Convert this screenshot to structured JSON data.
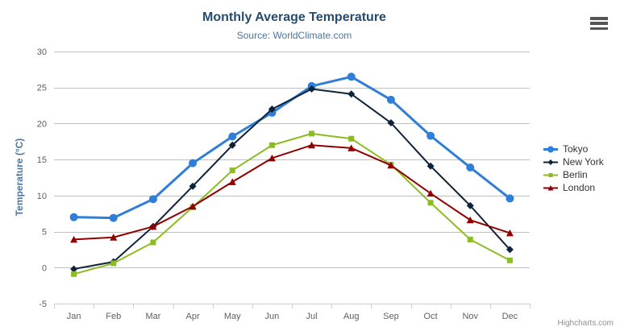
{
  "icons": {
    "context_menu": "hamburger-icon"
  },
  "chart_data": {
    "type": "line",
    "title": "Monthly Average Temperature",
    "subtitle": "Source: WorldClimate.com",
    "xlabel": "",
    "ylabel": "Temperature (°C)",
    "categories": [
      "Jan",
      "Feb",
      "Mar",
      "Apr",
      "May",
      "Jun",
      "Jul",
      "Aug",
      "Sep",
      "Oct",
      "Nov",
      "Dec"
    ],
    "ylim": [
      -5,
      30
    ],
    "ytick_step": 5,
    "grid": true,
    "legend_position": "right",
    "series": [
      {
        "name": "Tokyo",
        "color": "#2f7ed8",
        "marker": "circle",
        "line_width": 3,
        "marker_radius": 5,
        "values": [
          7.0,
          6.9,
          9.5,
          14.5,
          18.2,
          21.5,
          25.2,
          26.5,
          23.3,
          18.3,
          13.9,
          9.6
        ]
      },
      {
        "name": "New York",
        "color": "#0d233a",
        "marker": "diamond",
        "line_width": 2,
        "marker_radius": 4,
        "values": [
          -0.2,
          0.8,
          5.7,
          11.3,
          17.0,
          22.0,
          24.8,
          24.1,
          20.1,
          14.1,
          8.6,
          2.5
        ]
      },
      {
        "name": "Berlin",
        "color": "#8bbc21",
        "marker": "square",
        "line_width": 2,
        "marker_radius": 4,
        "values": [
          -0.9,
          0.6,
          3.5,
          8.4,
          13.5,
          17.0,
          18.6,
          17.9,
          14.3,
          9.0,
          3.9,
          1.0
        ]
      },
      {
        "name": "London",
        "color": "#910000",
        "marker": "triangle",
        "line_width": 2,
        "marker_radius": 4,
        "values": [
          3.9,
          4.2,
          5.7,
          8.5,
          11.9,
          15.2,
          17.0,
          16.6,
          14.2,
          10.3,
          6.6,
          4.8
        ]
      }
    ],
    "axis_colors": {
      "grid_line": "#c0c0c0",
      "axis_line": "#c0d0e0",
      "tick_label": "#606060"
    },
    "credits": "Highcharts.com"
  }
}
